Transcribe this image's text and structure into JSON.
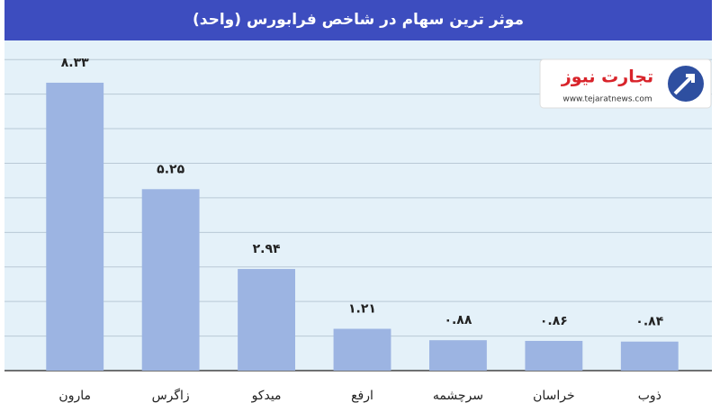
{
  "chart_data": {
    "type": "bar",
    "title": "موثر ترین سهام در شاخص فرابورس (واحد)",
    "categories": [
      "مارون",
      "زاگرس",
      "میدکو",
      "ارفع",
      "سرچشمه",
      "خراسان",
      "ذوب"
    ],
    "values": [
      8.33,
      5.25,
      2.94,
      1.21,
      0.88,
      0.86,
      0.84
    ],
    "value_labels": [
      "۸.۳۳",
      "۵.۲۵",
      "۲.۹۴",
      "۱.۲۱",
      "۰.۸۸",
      "۰.۸۶",
      "۰.۸۴"
    ],
    "color": "#9cb4e2",
    "ylim": [
      0,
      9.5
    ],
    "yticks": [
      0,
      1,
      2,
      3,
      4,
      5,
      6,
      7,
      8,
      9
    ],
    "grid": true
  },
  "logo": {
    "name": "تجارت نیوز",
    "url": "www.tejaratnews.com"
  }
}
